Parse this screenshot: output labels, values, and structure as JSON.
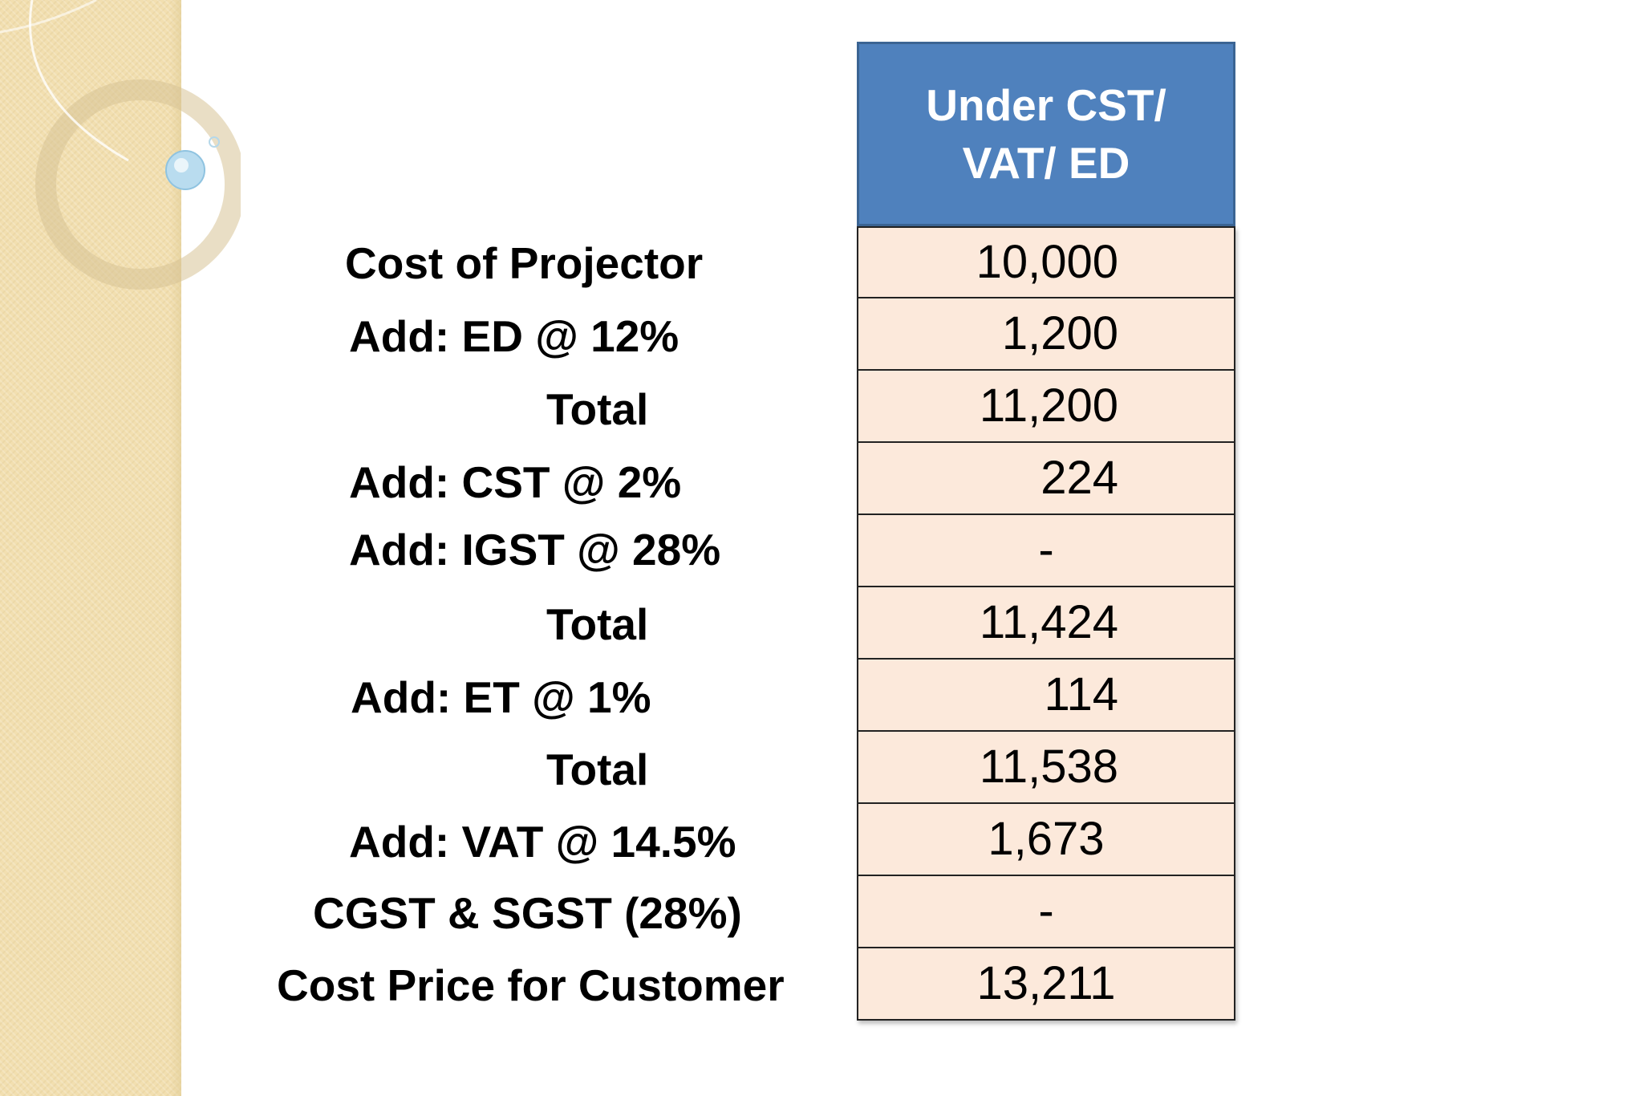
{
  "table": {
    "header": "Under CST/ VAT/ ED",
    "header_line1": "Under CST/",
    "header_line2": "VAT/ ED",
    "rows": [
      {
        "label": "Cost of Projector",
        "value": "10,000"
      },
      {
        "label": "Add: ED @ 12%",
        "value": "1,200"
      },
      {
        "label": "Total",
        "value": "11,200"
      },
      {
        "label": "Add: CST @ 2%",
        "value": "224"
      },
      {
        "label": "Add: IGST @ 28%",
        "value": "-"
      },
      {
        "label": "Total",
        "value": "11,424"
      },
      {
        "label": "Add: ET @ 1%",
        "value": "114"
      },
      {
        "label": "Total",
        "value": "11,538"
      },
      {
        "label": "Add: VAT @ 14.5%",
        "value": "1,673"
      },
      {
        "label": "CGST & SGST (28%)",
        "value": "-"
      },
      {
        "label": "Cost Price for Customer",
        "value": "13,211"
      }
    ]
  },
  "colors": {
    "header_bg": "#4f81bd",
    "cell_bg": "#fce9db",
    "side_band": "#f2dfb0"
  }
}
